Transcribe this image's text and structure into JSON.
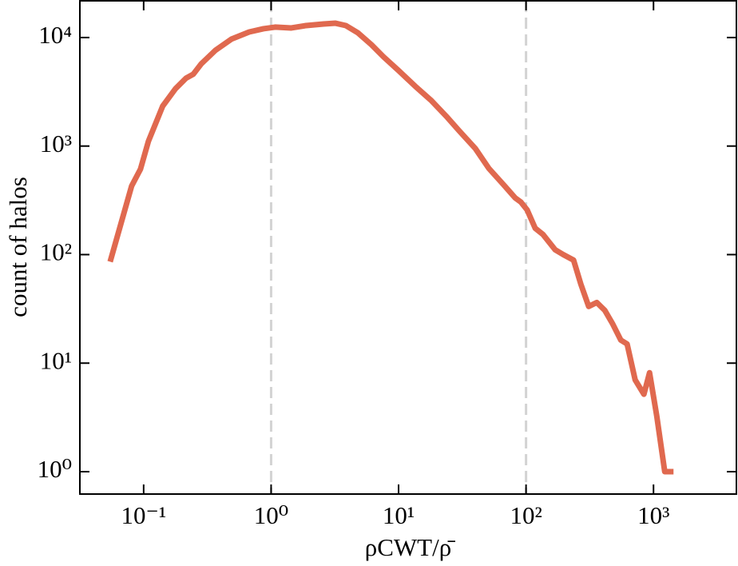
{
  "chart_data": {
    "type": "line",
    "xlabel": "ρCWT/ρ̄",
    "ylabel": "count of halos",
    "log_x": true,
    "log_y": true,
    "xlim": [
      0.0316,
      4470
    ],
    "ylim": [
      0.622,
      21800
    ],
    "xticks": [
      {
        "value": 0.1,
        "label": "10⁻¹"
      },
      {
        "value": 1,
        "label": "10⁰"
      },
      {
        "value": 10,
        "label": "10¹"
      },
      {
        "value": 100,
        "label": "10²"
      },
      {
        "value": 1000,
        "label": "10³"
      }
    ],
    "yticks": [
      {
        "value": 1,
        "label": "10⁰"
      },
      {
        "value": 10,
        "label": "10¹"
      },
      {
        "value": 100,
        "label": "10²"
      },
      {
        "value": 1000,
        "label": "10³"
      },
      {
        "value": 10000,
        "label": "10⁴"
      }
    ],
    "vlines": [
      1,
      100
    ],
    "vline_color": "#d3d3d3",
    "series": [
      {
        "color": "#e0694f",
        "x": [
          0.0546,
          0.0805,
          0.0944,
          0.109,
          0.141,
          0.178,
          0.215,
          0.245,
          0.283,
          0.366,
          0.489,
          0.673,
          0.871,
          1.075,
          1.44,
          1.88,
          2.58,
          3.2,
          3.86,
          4.79,
          6.12,
          7.6,
          10.1,
          13.5,
          18.1,
          24.1,
          29.9,
          40,
          51.1,
          66.2,
          82.2,
          91,
          102,
          118,
          136,
          169,
          196,
          236,
          269,
          310,
          359,
          415,
          479,
          554,
          621,
          718,
          841,
          931,
          1060,
          1225,
          1435
        ],
        "values": [
          86,
          429,
          612,
          1108,
          2333,
          3383,
          4220,
          4590,
          5720,
          7630,
          9670,
          11250,
          12060,
          12470,
          12250,
          12890,
          13330,
          13550,
          12890,
          11070,
          8590,
          6660,
          4910,
          3560,
          2620,
          1840,
          1380,
          950,
          622,
          444,
          333,
          305,
          258,
          175,
          153,
          111,
          100,
          89,
          53.5,
          33.3,
          36.2,
          30.6,
          22.9,
          16.3,
          15,
          7.01,
          5.17,
          8.16,
          3.27,
          1,
          1
        ]
      }
    ]
  }
}
